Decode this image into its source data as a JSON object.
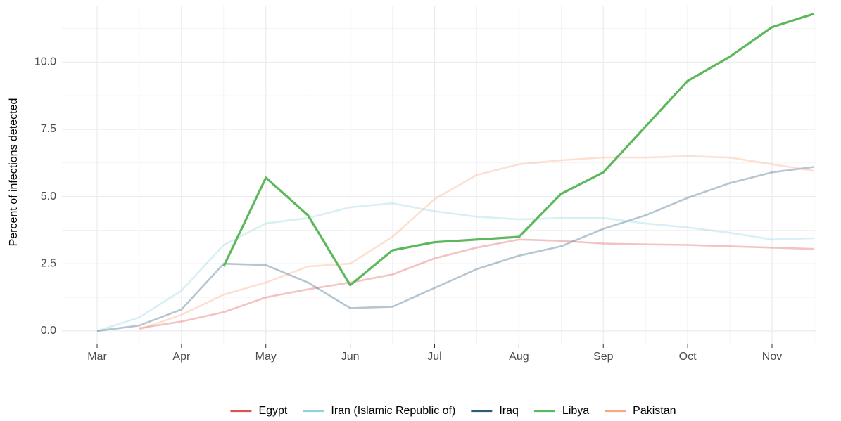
{
  "chart_data": {
    "type": "line",
    "y_label": "Percent of infections detected",
    "categories": [
      "Mar",
      null,
      "Apr",
      null,
      "May",
      null,
      "Jun",
      null,
      "Jul",
      null,
      "Aug",
      null,
      "Sep",
      null,
      "Oct",
      null,
      "Nov",
      null
    ],
    "ylim": [
      -0.5,
      12.1
    ],
    "yticks": [
      {
        "value": 0,
        "label": "0.0"
      },
      2.5,
      {
        "value": 5,
        "label": "5.0"
      },
      7.5,
      {
        "value": 10,
        "label": "10.0"
      }
    ],
    "grid": true,
    "legend": "bottom",
    "highlight": "Libya",
    "series": [
      {
        "name": "Egypt",
        "color": "#d9534f",
        "values": [
          null,
          0.1,
          0.35,
          0.7,
          1.25,
          1.55,
          1.8,
          2.1,
          2.7,
          3.1,
          3.4,
          3.35,
          3.25,
          3.22,
          3.2,
          3.15,
          3.1,
          3.05
        ]
      },
      {
        "name": "Iran (Islamic Republic of)",
        "color": "#8fd4dc",
        "values": [
          0,
          0.5,
          1.5,
          3.2,
          4.0,
          4.2,
          4.6,
          4.75,
          4.45,
          4.25,
          4.15,
          4.2,
          4.2,
          4.0,
          3.85,
          3.65,
          3.4,
          3.45
        ]
      },
      {
        "name": "Iraq",
        "color": "#2b5b7e",
        "values": [
          0,
          0.2,
          0.8,
          2.5,
          2.45,
          1.8,
          0.85,
          0.9,
          1.6,
          2.3,
          2.8,
          3.15,
          3.8,
          4.3,
          4.95,
          5.5,
          5.9,
          6.1
        ]
      },
      {
        "name": "Libya",
        "color": "#5cb85c",
        "values": [
          null,
          null,
          null,
          2.4,
          5.7,
          4.3,
          1.7,
          3.0,
          3.3,
          3.4,
          3.5,
          5.1,
          5.9,
          7.6,
          9.3,
          10.2,
          11.3,
          11.8
        ]
      },
      {
        "name": "Pakistan",
        "color": "#f7a882",
        "values": [
          null,
          0.05,
          0.6,
          1.35,
          1.8,
          2.4,
          2.5,
          3.5,
          4.9,
          5.8,
          6.2,
          6.35,
          6.45,
          6.45,
          6.5,
          6.45,
          6.2,
          5.95
        ]
      }
    ]
  }
}
